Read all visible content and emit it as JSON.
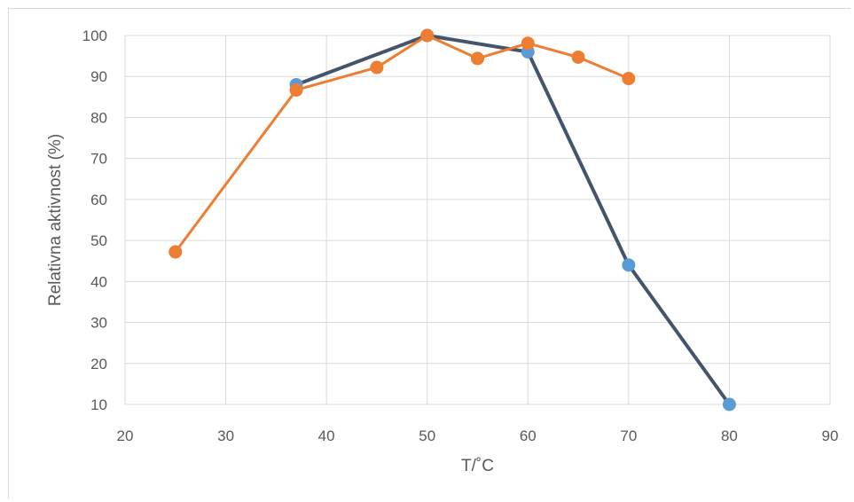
{
  "chart_data": {
    "type": "line",
    "title": "",
    "xlabel": "T/˚C",
    "ylabel": "Relativna aktivnost (%)",
    "xlim": [
      20,
      90
    ],
    "ylim": [
      10,
      100
    ],
    "x_ticks": [
      20,
      30,
      40,
      50,
      60,
      70,
      80,
      90
    ],
    "y_ticks": [
      10,
      20,
      30,
      40,
      50,
      60,
      70,
      80,
      90,
      100
    ],
    "grid": true,
    "legend": "none",
    "series": [
      {
        "line_color": "#44546a",
        "marker_color": "#5b9bd5",
        "points": [
          [
            37,
            88
          ],
          [
            50,
            100
          ],
          [
            60,
            96
          ],
          [
            70,
            44
          ],
          [
            80,
            10
          ]
        ]
      },
      {
        "line_color": "#ed7d31",
        "marker_color": "#ed7d31",
        "points": [
          [
            25,
            47.2
          ],
          [
            37,
            86.7
          ],
          [
            45,
            92.2
          ],
          [
            50,
            100
          ],
          [
            55,
            94.4
          ],
          [
            60,
            98.1
          ],
          [
            65,
            94.7
          ],
          [
            70,
            89.5
          ]
        ]
      }
    ]
  }
}
